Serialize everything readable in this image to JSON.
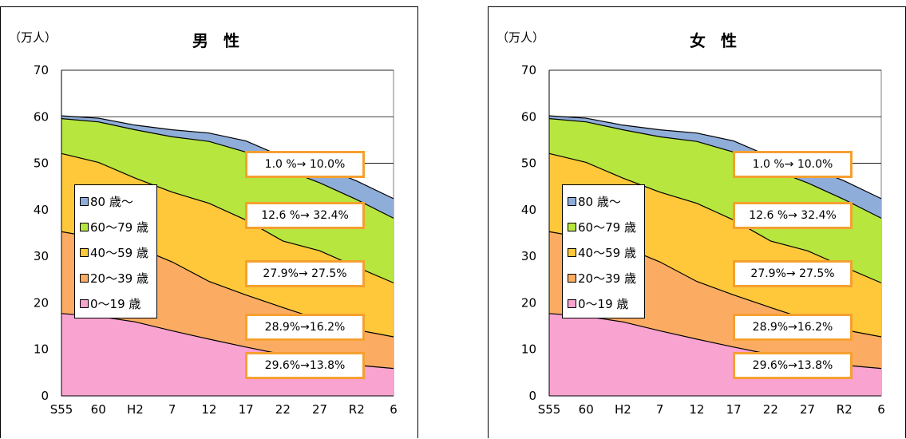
{
  "chart_data": [
    {
      "type": "area",
      "title": "男 性",
      "ylabel": "（万人）",
      "x": [
        "S55",
        "60",
        "H2",
        "7",
        "12",
        "17",
        "22",
        "27",
        "R2",
        "6"
      ],
      "ylim": [
        0,
        70
      ],
      "yticks": [
        0,
        10,
        20,
        30,
        40,
        50,
        60,
        70
      ],
      "stacked": true,
      "series": [
        {
          "name": "0〜19 歳",
          "color": "#f9a3d0",
          "values": [
            17.7,
            17.1,
            15.9,
            14.0,
            12.2,
            10.5,
            8.9,
            7.7,
            6.6,
            5.9
          ]
        },
        {
          "name": "20〜39 歳",
          "color": "#fcac62",
          "values": [
            17.6,
            16.8,
            16.2,
            14.8,
            12.4,
            11.2,
            10.1,
            8.7,
            7.6,
            6.8
          ]
        },
        {
          "name": "40〜59 歳",
          "color": "#fec83a",
          "values": [
            16.8,
            16.3,
            14.7,
            15.0,
            16.8,
            16.1,
            14.3,
            14.8,
            13.5,
            11.6
          ]
        },
        {
          "name": "60〜79 歳",
          "color": "#b7e63e",
          "values": [
            7.5,
            8.7,
            10.4,
            11.9,
            13.3,
            14.6,
            15.5,
            14.6,
            14.5,
            13.9
          ]
        },
        {
          "name": "80 歳〜",
          "color": "#8fadd9",
          "values": [
            0.6,
            0.8,
            1.0,
            1.5,
            1.8,
            2.4,
            2.6,
            3.6,
            4.0,
            4.2
          ]
        }
      ],
      "annotations": [
        "1.0 %→ 10.0%",
        "12.6 %→ 32.4%",
        "27.9%→ 27.5%",
        "28.9%→16.2%",
        "29.6%→13.8%"
      ],
      "legend": "left-middle",
      "grid": "horizontal"
    },
    {
      "type": "area",
      "title": "女 性",
      "ylabel": "（万人）",
      "x": [
        "S55",
        "60",
        "H2",
        "7",
        "12",
        "17",
        "22",
        "27",
        "R2",
        "6"
      ],
      "ylim": [
        0,
        70
      ],
      "yticks": [
        0,
        10,
        20,
        30,
        40,
        50,
        60,
        70
      ],
      "stacked": true,
      "series": [
        {
          "name": "0〜19 歳",
          "color": "#f9a3d0",
          "values": [
            17.7,
            17.1,
            15.9,
            14.0,
            12.2,
            10.5,
            8.9,
            7.7,
            6.6,
            5.9
          ]
        },
        {
          "name": "20〜39 歳",
          "color": "#fcac62",
          "values": [
            17.6,
            16.8,
            16.2,
            14.8,
            12.4,
            11.2,
            10.1,
            8.7,
            7.6,
            6.8
          ]
        },
        {
          "name": "40〜59 歳",
          "color": "#fec83a",
          "values": [
            16.8,
            16.3,
            14.7,
            15.0,
            16.8,
            16.1,
            14.3,
            14.8,
            13.5,
            11.6
          ]
        },
        {
          "name": "60〜79 歳",
          "color": "#b7e63e",
          "values": [
            7.5,
            8.7,
            10.4,
            11.9,
            13.3,
            14.6,
            15.5,
            14.6,
            14.5,
            13.9
          ]
        },
        {
          "name": "80 歳〜",
          "color": "#8fadd9",
          "values": [
            0.6,
            0.8,
            1.0,
            1.5,
            1.8,
            2.4,
            2.6,
            3.6,
            4.0,
            4.2
          ]
        }
      ],
      "annotations": [
        "1.0 %→ 10.0%",
        "12.6 %→ 32.4%",
        "27.9%→ 27.5%",
        "28.9%→16.2%",
        "29.6%→13.8%"
      ],
      "legend": "left-middle",
      "grid": "horizontal"
    }
  ]
}
